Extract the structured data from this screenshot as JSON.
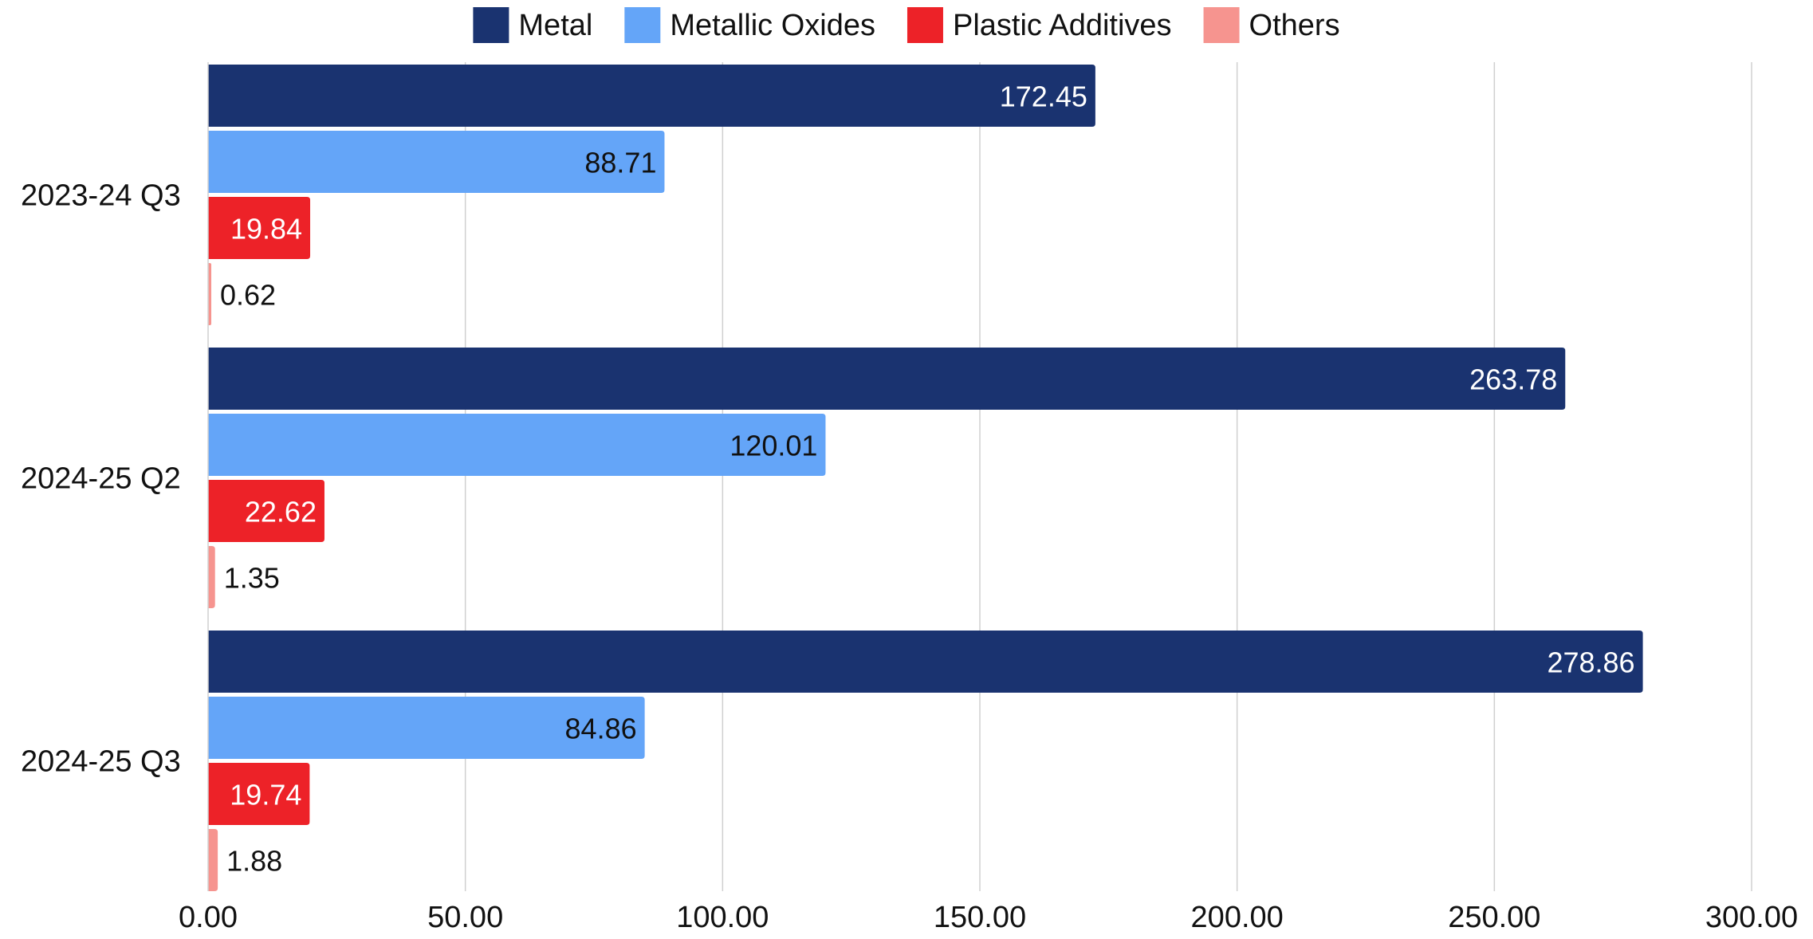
{
  "chart_data": {
    "type": "bar",
    "orientation": "horizontal",
    "categories": [
      "2023-24 Q3",
      "2024-25 Q2",
      "2024-25 Q3"
    ],
    "series": [
      {
        "name": "Metal",
        "color": "#1a3370",
        "label_color": "#ffffff",
        "values": [
          172.45,
          263.78,
          278.86
        ],
        "labels": [
          "172.45",
          "263.78",
          "278.86"
        ]
      },
      {
        "name": "Metallic Oxides",
        "color": "#64a5f8",
        "label_color": "#111111",
        "values": [
          88.71,
          120.01,
          84.86
        ],
        "labels": [
          "88.71",
          "120.01",
          "84.86"
        ]
      },
      {
        "name": "Plastic Additives",
        "color": "#ed2228",
        "label_color": "#ffffff",
        "values": [
          19.84,
          22.62,
          19.74
        ],
        "labels": [
          "19.84",
          "22.62",
          "19.74"
        ]
      },
      {
        "name": "Others",
        "color": "#f6948f",
        "label_color": "#111111",
        "values": [
          0.62,
          1.35,
          1.88
        ],
        "labels": [
          "0.62",
          "1.35",
          "1.88"
        ]
      }
    ],
    "xlim": [
      0,
      300
    ],
    "x_ticks": [
      0,
      50,
      100,
      150,
      200,
      250,
      300
    ],
    "x_tick_labels": [
      "0.00",
      "50.00",
      "100.00",
      "150.00",
      "200.00",
      "250.00",
      "300.00"
    ],
    "grid": true,
    "legend_position": "top-center",
    "title": "",
    "xlabel": "",
    "ylabel": ""
  }
}
